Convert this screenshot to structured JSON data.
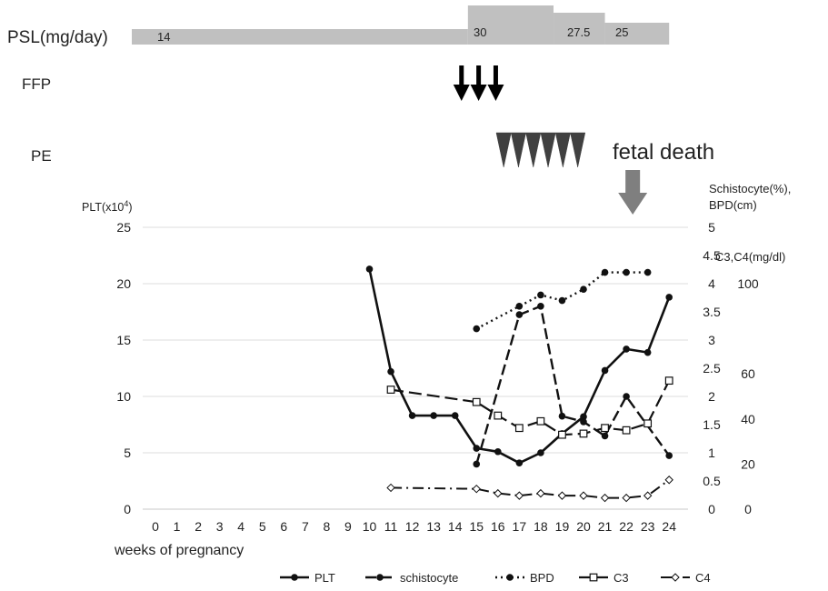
{
  "chart_data": {
    "type": "line",
    "xlabel": "weeks of pregnancy",
    "ylabel_left": "PLT(x10",
    "ylabel_left_sup": "4",
    "ylabel_left_close": ")",
    "ylabel_right_1": "Schistocyte(%),",
    "ylabel_right_2": "BPD(cm)",
    "ylabel_right_3": "C3,C4(mg/dl)",
    "ylim_left": [
      0,
      25
    ],
    "ylim_right_1": [
      0,
      5
    ],
    "ylim_right_2": [
      0,
      125
    ],
    "x": [
      0,
      1,
      2,
      3,
      4,
      5,
      6,
      7,
      8,
      9,
      10,
      11,
      12,
      13,
      14,
      15,
      16,
      17,
      18,
      19,
      20,
      21,
      22,
      23,
      24
    ],
    "y_ticks_left": [
      0,
      5,
      10,
      15,
      20,
      25
    ],
    "y_ticks_right_1": [
      "0.5",
      "1",
      "1.5",
      "2",
      "2.5",
      "3",
      "3.5",
      "4",
      "4.5",
      "5"
    ],
    "y_ticks_right_2": [
      "0",
      "20",
      "40",
      "60",
      "100"
    ],
    "grid": true,
    "legend_position": "bottom",
    "series": [
      {
        "name": "PLT",
        "axis": "left",
        "style": "solid",
        "marker": "filled-circle",
        "x": [
          10,
          11,
          12,
          13,
          14,
          15,
          16,
          17,
          18,
          19,
          20,
          21,
          22,
          23,
          24
        ],
        "y": [
          21.3,
          12.2,
          8.3,
          8.3,
          8.3,
          5.4,
          5.1,
          4.1,
          5.0,
          6.7,
          8.2,
          12.3,
          14.2,
          13.9,
          18.8
        ]
      },
      {
        "name": "schistocyte",
        "axis": "right1",
        "style": "dashed",
        "marker": "filled-circle",
        "x": [
          15,
          17,
          18,
          19,
          20,
          21,
          22,
          24
        ],
        "y": [
          0.8,
          3.45,
          3.6,
          1.65,
          1.55,
          1.3,
          2.0,
          0.95
        ]
      },
      {
        "name": "BPD",
        "axis": "right1",
        "style": "dotted",
        "marker": "filled-circle",
        "x": [
          15,
          17,
          18,
          19,
          20,
          21,
          22,
          23
        ],
        "y": [
          3.2,
          3.6,
          3.8,
          3.7,
          3.9,
          4.2,
          4.2,
          4.2
        ]
      },
      {
        "name": "C3",
        "axis": "right2",
        "style": "longdash",
        "marker": "open-square",
        "x": [
          11,
          15,
          16,
          17,
          18,
          19,
          20,
          21,
          22,
          23,
          24
        ],
        "y": [
          53,
          47.5,
          41.5,
          36,
          39,
          33,
          33.5,
          36,
          35,
          38,
          57
        ]
      },
      {
        "name": "C4",
        "axis": "right2",
        "style": "dashdot",
        "marker": "open-diamond",
        "x": [
          11,
          15,
          16,
          17,
          18,
          19,
          20,
          21,
          22,
          23,
          24
        ],
        "y": [
          9.5,
          9,
          7,
          6,
          7,
          6,
          6,
          5,
          5,
          6,
          13
        ]
      }
    ]
  },
  "timeline": {
    "psl": {
      "label": "PSL(mg/day)",
      "segments": [
        {
          "from": -1,
          "to": 14.6,
          "level": 14,
          "label": "14"
        },
        {
          "from": 14.6,
          "to": 18.6,
          "level": 30,
          "label": "30"
        },
        {
          "from": 18.6,
          "to": 21,
          "level": 27.5,
          "label": "27.5"
        },
        {
          "from": 21,
          "to": 24,
          "level": 25,
          "label": "25"
        }
      ]
    },
    "ffp": {
      "label": "FFP",
      "weeks": [
        14.3,
        15.1,
        15.9
      ]
    },
    "pe": {
      "label": "PE",
      "from": 16.6,
      "count": 6
    },
    "fetal_death": {
      "label": "fetal death",
      "week": 22.3
    }
  }
}
